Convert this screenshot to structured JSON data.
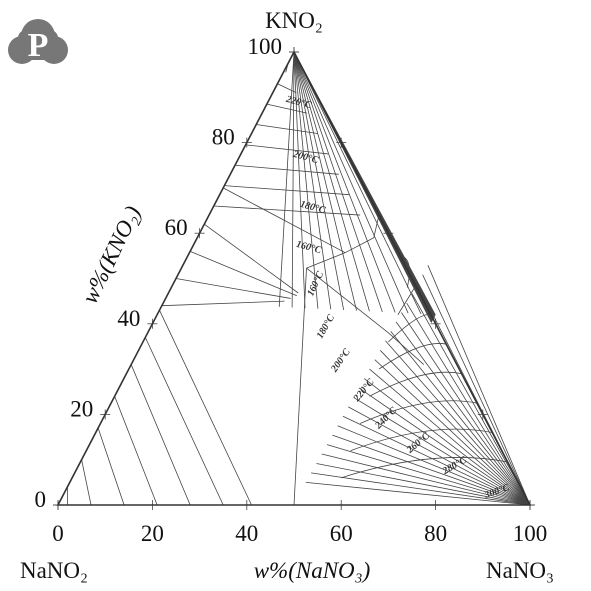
{
  "logo": "P",
  "vertices": {
    "top": "KNO₂",
    "left": "NaNO₂",
    "right": "NaNO₃"
  },
  "axes": {
    "left": {
      "title": "w%(KNO₂)",
      "ticks": [
        "0",
        "20",
        "40",
        "60",
        "80",
        "100"
      ]
    },
    "bottom": {
      "title": "w%(NaNO₃)",
      "ticks": [
        "0",
        "20",
        "40",
        "60",
        "80",
        "100"
      ]
    }
  },
  "isotherms": [
    "220°C",
    "200°C",
    "180°C",
    "160°C",
    "160°C",
    "180°C",
    "200°C",
    "220°C",
    "240°C",
    "260°C",
    "280°C",
    "300°C"
  ]
}
